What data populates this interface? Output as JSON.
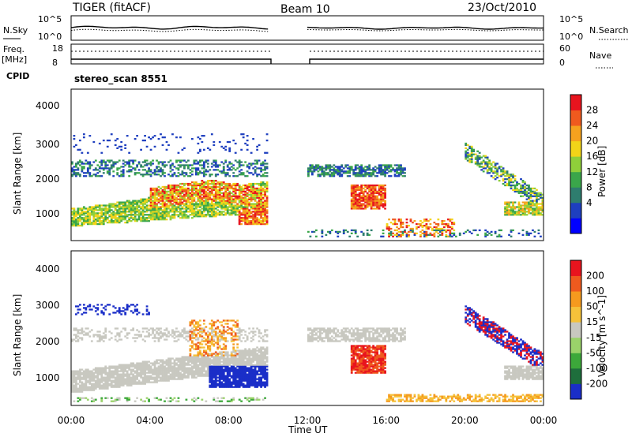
{
  "header": {
    "title": "TIGER (fitACF)",
    "beam": "Beam 10",
    "date": "23/Oct/2010"
  },
  "top_panels": {
    "nsky_label": "N.Sky",
    "nsky_ticks": [
      "10^5",
      "10^0"
    ],
    "nsearch_label": "N.Search",
    "nsearch_ticks": [
      "10^5",
      "10^0"
    ],
    "freq_label": "Freq.",
    "freq_unit": "[MHz]",
    "freq_ticks": [
      "18",
      "8"
    ],
    "nave_label": "Nave",
    "nave_ticks": [
      "60",
      "0"
    ],
    "cpid_label": "CPID",
    "cpid_value": "stereo_scan 8551"
  },
  "chart_data": [
    {
      "type": "heatmap",
      "name": "power",
      "ylabel": "Slant Range [km]",
      "yticks": [
        1000,
        2000,
        3000,
        4000
      ],
      "ylim": [
        200,
        4600
      ],
      "xlim": [
        0,
        24
      ],
      "colorbar_label": "Power [dB]",
      "colorbar_ticks": [
        "28",
        "24",
        "20",
        "16",
        "12",
        "8",
        "4"
      ],
      "colorbar_colors": [
        "#0000ff",
        "#1e3fbf",
        "#2e7d6e",
        "#3aa64a",
        "#8fcf3a",
        "#f2d418",
        "#f5a21e",
        "#ef5a1e",
        "#e8141e"
      ],
      "data_gap_hours": [
        10,
        12
      ]
    },
    {
      "type": "heatmap",
      "name": "velocity",
      "ylabel": "Slant Range [km]",
      "yticks": [
        1000,
        2000,
        3000,
        4000
      ],
      "ylim": [
        200,
        4600
      ],
      "xlim": [
        0,
        24
      ],
      "colorbar_label": "Velocity [m s^-1]",
      "colorbar_ticks": [
        "200",
        "100",
        "50",
        "15",
        "-15",
        "-50",
        "-100",
        "-200"
      ],
      "colorbar_colors": [
        "#1a2ec8",
        "#1e6e3c",
        "#3ca83a",
        "#9ad26a",
        "#c8c8c0",
        "#f5c23a",
        "#f59a1e",
        "#ef5a1e",
        "#e8141e"
      ],
      "data_gap_hours": [
        10,
        12
      ]
    }
  ],
  "x_axis": {
    "label": "Time UT",
    "ticks": [
      "00:00",
      "04:00",
      "08:00",
      "12:00",
      "16:00",
      "20:00",
      "00:00"
    ]
  }
}
